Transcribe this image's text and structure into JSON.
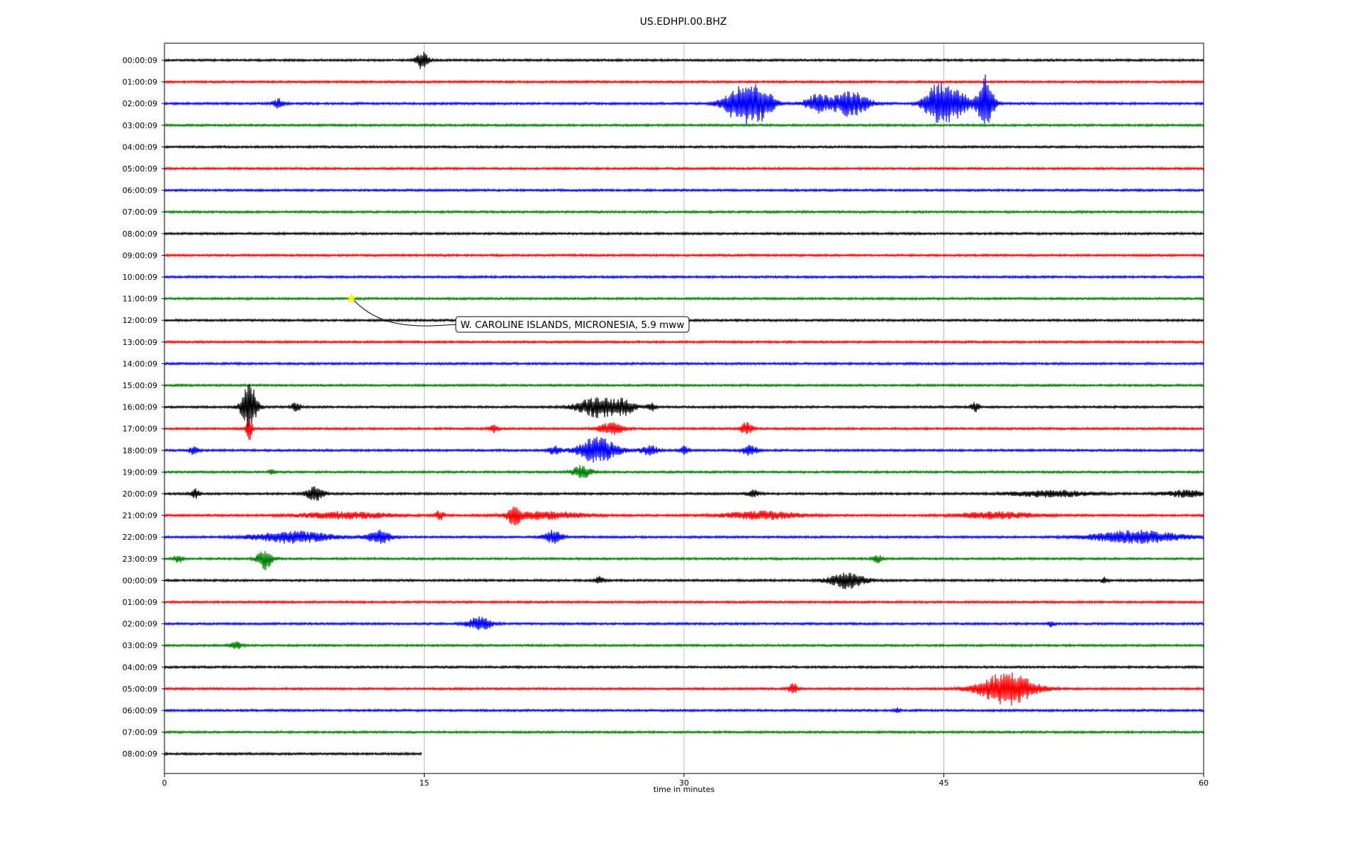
{
  "chart_data": {
    "type": "line",
    "title": "US.EDHPI.00.BHZ",
    "xlabel": "time in minutes",
    "xlim": [
      0,
      60
    ],
    "xticks": [
      "0",
      "15",
      "30",
      "45",
      "60"
    ],
    "xtick_values": [
      0,
      15,
      30,
      45,
      60
    ],
    "grid": "vertical",
    "colors": [
      "#000000",
      "#ff0000",
      "#0000ff",
      "#008000"
    ],
    "rows": [
      {
        "label": "00:00:09",
        "events": [
          {
            "t": 14.9,
            "a": 0.7,
            "w": 0.4
          }
        ]
      },
      {
        "label": "01:00:09",
        "events": []
      },
      {
        "label": "02:00:09",
        "events": [
          {
            "t": 6.6,
            "a": 0.35,
            "w": 0.4
          },
          {
            "t": 33.4,
            "a": 1.6,
            "w": 1.2
          },
          {
            "t": 34.6,
            "a": 0.8,
            "w": 0.8
          },
          {
            "t": 37.7,
            "a": 0.7,
            "w": 0.8
          },
          {
            "t": 39.6,
            "a": 1.0,
            "w": 1.2
          },
          {
            "t": 44.5,
            "a": 1.3,
            "w": 0.8
          },
          {
            "t": 45.6,
            "a": 1.2,
            "w": 1.0
          },
          {
            "t": 47.4,
            "a": 2.3,
            "w": 0.5
          }
        ]
      },
      {
        "label": "03:00:09",
        "events": []
      },
      {
        "label": "04:00:09",
        "events": []
      },
      {
        "label": "05:00:09",
        "events": []
      },
      {
        "label": "06:00:09",
        "events": []
      },
      {
        "label": "07:00:09",
        "events": []
      },
      {
        "label": "08:00:09",
        "events": []
      },
      {
        "label": "09:00:09",
        "events": []
      },
      {
        "label": "10:00:09",
        "events": []
      },
      {
        "label": "11:00:09",
        "events": []
      },
      {
        "label": "12:00:09",
        "events": []
      },
      {
        "label": "13:00:09",
        "events": []
      },
      {
        "label": "14:00:09",
        "events": []
      },
      {
        "label": "15:00:09",
        "events": []
      },
      {
        "label": "16:00:09",
        "events": [
          {
            "t": 4.9,
            "a": 1.9,
            "w": 0.5
          },
          {
            "t": 7.6,
            "a": 0.35,
            "w": 0.3
          },
          {
            "t": 25.1,
            "a": 0.8,
            "w": 1.4
          },
          {
            "t": 26.6,
            "a": 0.5,
            "w": 0.6
          },
          {
            "t": 28.1,
            "a": 0.3,
            "w": 0.3
          },
          {
            "t": 46.8,
            "a": 0.35,
            "w": 0.3
          }
        ]
      },
      {
        "label": "17:00:09",
        "events": [
          {
            "t": 4.9,
            "a": 0.9,
            "w": 0.2
          },
          {
            "t": 19.0,
            "a": 0.3,
            "w": 0.3
          },
          {
            "t": 25.8,
            "a": 0.45,
            "w": 0.8
          },
          {
            "t": 33.6,
            "a": 0.45,
            "w": 0.4
          }
        ]
      },
      {
        "label": "18:00:09",
        "events": [
          {
            "t": 1.7,
            "a": 0.35,
            "w": 0.3
          },
          {
            "t": 22.5,
            "a": 0.3,
            "w": 0.4
          },
          {
            "t": 25.0,
            "a": 1.0,
            "w": 1.3
          },
          {
            "t": 28.0,
            "a": 0.35,
            "w": 0.6
          },
          {
            "t": 30.0,
            "a": 0.35,
            "w": 0.3
          },
          {
            "t": 33.8,
            "a": 0.4,
            "w": 0.5
          }
        ]
      },
      {
        "label": "19:00:09",
        "events": [
          {
            "t": 6.2,
            "a": 0.25,
            "w": 0.2
          },
          {
            "t": 24.1,
            "a": 0.5,
            "w": 0.6
          }
        ]
      },
      {
        "label": "20:00:09",
        "events": [
          {
            "t": 1.8,
            "a": 0.35,
            "w": 0.3
          },
          {
            "t": 8.7,
            "a": 0.55,
            "w": 0.6
          },
          {
            "t": 34.0,
            "a": 0.25,
            "w": 0.4
          },
          {
            "t": 51.1,
            "a": 0.25,
            "w": 2.5
          },
          {
            "t": 59.0,
            "a": 0.25,
            "w": 1.5
          }
        ]
      },
      {
        "label": "21:00:09",
        "events": [
          {
            "t": 10.4,
            "a": 0.25,
            "w": 3.0
          },
          {
            "t": 15.9,
            "a": 0.35,
            "w": 0.3
          },
          {
            "t": 20.2,
            "a": 0.7,
            "w": 0.4
          },
          {
            "t": 22.0,
            "a": 0.3,
            "w": 2.5
          },
          {
            "t": 34.5,
            "a": 0.3,
            "w": 2.5
          },
          {
            "t": 48.0,
            "a": 0.25,
            "w": 2.5
          }
        ]
      },
      {
        "label": "22:00:09",
        "events": [
          {
            "t": 7.4,
            "a": 0.45,
            "w": 2.5
          },
          {
            "t": 12.4,
            "a": 0.5,
            "w": 0.8
          },
          {
            "t": 22.4,
            "a": 0.5,
            "w": 0.6
          },
          {
            "t": 56.1,
            "a": 0.5,
            "w": 2.8
          }
        ]
      },
      {
        "label": "23:00:09",
        "events": [
          {
            "t": 0.8,
            "a": 0.3,
            "w": 0.3
          },
          {
            "t": 5.8,
            "a": 0.8,
            "w": 0.5
          },
          {
            "t": 41.2,
            "a": 0.3,
            "w": 0.3
          }
        ]
      },
      {
        "label": "00:00:09",
        "events": [
          {
            "t": 25.1,
            "a": 0.3,
            "w": 0.3
          },
          {
            "t": 39.4,
            "a": 0.6,
            "w": 1.2
          },
          {
            "t": 54.3,
            "a": 0.25,
            "w": 0.2
          }
        ]
      },
      {
        "label": "01:00:09",
        "events": []
      },
      {
        "label": "02:00:09",
        "events": [
          {
            "t": 18.2,
            "a": 0.55,
            "w": 0.8
          },
          {
            "t": 51.2,
            "a": 0.2,
            "w": 0.2
          }
        ]
      },
      {
        "label": "03:00:09",
        "events": [
          {
            "t": 4.1,
            "a": 0.3,
            "w": 0.4
          }
        ]
      },
      {
        "label": "04:00:09",
        "events": []
      },
      {
        "label": "05:00:09",
        "events": [
          {
            "t": 36.3,
            "a": 0.45,
            "w": 0.3
          },
          {
            "t": 48.6,
            "a": 1.3,
            "w": 1.8
          }
        ]
      },
      {
        "label": "06:00:09",
        "events": [
          {
            "t": 42.3,
            "a": 0.2,
            "w": 0.2
          }
        ]
      },
      {
        "label": "07:00:09",
        "events": []
      },
      {
        "label": "08:00:09",
        "events": [],
        "end": 14.85
      }
    ],
    "annotation": {
      "text": "W. CAROLINE ISLANDS, MICRONESIA, 5.9 mww",
      "row": 11,
      "time_min": 10.8,
      "marker": "star",
      "marker_color": "#ffff00"
    }
  }
}
